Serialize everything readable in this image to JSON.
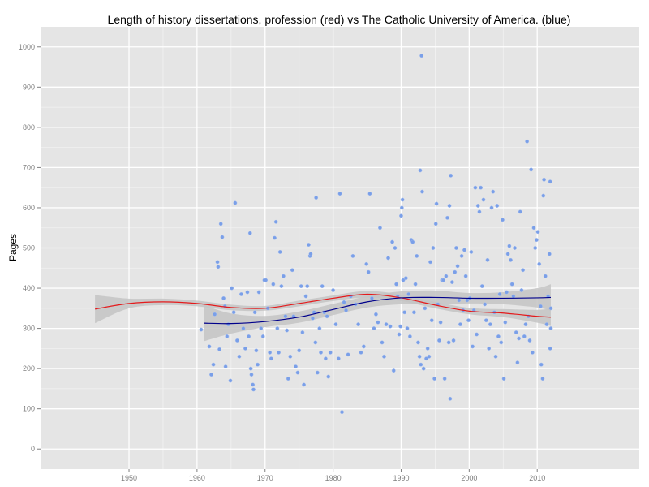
{
  "chart_data": {
    "type": "scatter",
    "title": "Length of history dissertations, profession (red) vs The Catholic University of America. (blue)",
    "xlabel": "",
    "ylabel": "Pages",
    "xlim": [
      1937,
      2025
    ],
    "ylim": [
      -50,
      1050
    ],
    "x_ticks": [
      1950,
      1960,
      1970,
      1980,
      1990,
      2000,
      2010
    ],
    "y_ticks": [
      0,
      100,
      200,
      300,
      400,
      500,
      600,
      700,
      800,
      900,
      1000
    ],
    "grid": true,
    "legend": "none",
    "colors": {
      "panel_background": "#e5e5e5",
      "grid_major": "#ffffff",
      "grid_minor": "#f2f2f2",
      "points": "#7a9fe8",
      "profession_line": "#e41a1c",
      "catholic_line": "#00008b",
      "confidence_band": "#c4c4c4"
    },
    "series": [
      {
        "kind": "points",
        "points": [
          [
            1960.6,
            297
          ],
          [
            1961.8,
            255
          ],
          [
            1962.1,
            185
          ],
          [
            1962.4,
            210
          ],
          [
            1962.6,
            335
          ],
          [
            1963.0,
            465
          ],
          [
            1963.1,
            453
          ],
          [
            1963.3,
            248
          ],
          [
            1963.5,
            560
          ],
          [
            1963.7,
            527
          ],
          [
            1963.9,
            375
          ],
          [
            1964.1,
            355
          ],
          [
            1964.2,
            205
          ],
          [
            1964.4,
            280
          ],
          [
            1964.6,
            310
          ],
          [
            1964.9,
            170
          ],
          [
            1965.1,
            400
          ],
          [
            1965.4,
            340
          ],
          [
            1965.6,
            612
          ],
          [
            1965.9,
            270
          ],
          [
            1966.2,
            230
          ],
          [
            1966.5,
            385
          ],
          [
            1966.8,
            300
          ],
          [
            1967.1,
            250
          ],
          [
            1967.4,
            390
          ],
          [
            1967.6,
            280
          ],
          [
            1967.8,
            537
          ],
          [
            1967.9,
            200
          ],
          [
            1968.0,
            185
          ],
          [
            1968.2,
            160
          ],
          [
            1968.3,
            148
          ],
          [
            1968.5,
            340
          ],
          [
            1968.7,
            245
          ],
          [
            1968.9,
            210
          ],
          [
            1969.1,
            390
          ],
          [
            1969.4,
            300
          ],
          [
            1969.7,
            280
          ],
          [
            1969.9,
            420
          ],
          [
            1970.1,
            420
          ],
          [
            1970.4,
            350
          ],
          [
            1970.7,
            240
          ],
          [
            1970.9,
            225
          ],
          [
            1971.2,
            410
          ],
          [
            1971.4,
            525
          ],
          [
            1971.6,
            565
          ],
          [
            1971.8,
            300
          ],
          [
            1972.0,
            240
          ],
          [
            1972.2,
            490
          ],
          [
            1972.4,
            405
          ],
          [
            1972.7,
            430
          ],
          [
            1973.0,
            330
          ],
          [
            1973.2,
            295
          ],
          [
            1973.4,
            175
          ],
          [
            1973.7,
            230
          ],
          [
            1974.0,
            445
          ],
          [
            1974.2,
            330
          ],
          [
            1974.5,
            205
          ],
          [
            1974.8,
            190
          ],
          [
            1975.0,
            245
          ],
          [
            1975.3,
            405
          ],
          [
            1975.5,
            290
          ],
          [
            1975.7,
            160
          ],
          [
            1976.0,
            380
          ],
          [
            1976.2,
            405
          ],
          [
            1976.4,
            508
          ],
          [
            1976.6,
            480
          ],
          [
            1976.7,
            485
          ],
          [
            1977.0,
            325
          ],
          [
            1977.2,
            340
          ],
          [
            1977.4,
            265
          ],
          [
            1977.5,
            625
          ],
          [
            1977.7,
            190
          ],
          [
            1978.0,
            300
          ],
          [
            1978.2,
            240
          ],
          [
            1978.4,
            405
          ],
          [
            1978.7,
            340
          ],
          [
            1978.9,
            225
          ],
          [
            1979.1,
            330
          ],
          [
            1979.3,
            180
          ],
          [
            1979.6,
            240
          ],
          [
            1980.0,
            395
          ],
          [
            1980.4,
            310
          ],
          [
            1980.8,
            225
          ],
          [
            1981.0,
            635
          ],
          [
            1981.3,
            92
          ],
          [
            1981.6,
            365
          ],
          [
            1981.9,
            345
          ],
          [
            1982.2,
            235
          ],
          [
            1982.6,
            380
          ],
          [
            1982.9,
            480
          ],
          [
            1983.3,
            360
          ],
          [
            1983.7,
            310
          ],
          [
            1984.1,
            240
          ],
          [
            1984.5,
            255
          ],
          [
            1984.9,
            460
          ],
          [
            1985.2,
            440
          ],
          [
            1985.4,
            635
          ],
          [
            1985.7,
            375
          ],
          [
            1986.0,
            300
          ],
          [
            1986.3,
            335
          ],
          [
            1986.6,
            315
          ],
          [
            1986.9,
            550
          ],
          [
            1987.2,
            265
          ],
          [
            1987.5,
            230
          ],
          [
            1987.8,
            310
          ],
          [
            1988.1,
            475
          ],
          [
            1988.4,
            305
          ],
          [
            1988.7,
            515
          ],
          [
            1988.9,
            195
          ],
          [
            1989.1,
            500
          ],
          [
            1989.3,
            410
          ],
          [
            1989.5,
            380
          ],
          [
            1989.7,
            285
          ],
          [
            1989.9,
            305
          ],
          [
            1990.0,
            580
          ],
          [
            1990.1,
            600
          ],
          [
            1990.2,
            620
          ],
          [
            1990.3,
            420
          ],
          [
            1990.5,
            340
          ],
          [
            1990.7,
            425
          ],
          [
            1990.9,
            300
          ],
          [
            1991.1,
            385
          ],
          [
            1991.3,
            280
          ],
          [
            1991.5,
            520
          ],
          [
            1991.7,
            515
          ],
          [
            1991.9,
            340
          ],
          [
            1992.1,
            410
          ],
          [
            1992.3,
            480
          ],
          [
            1992.5,
            265
          ],
          [
            1992.7,
            230
          ],
          [
            1992.8,
            693
          ],
          [
            1992.9,
            210
          ],
          [
            1993.0,
            978
          ],
          [
            1993.1,
            640
          ],
          [
            1993.3,
            200
          ],
          [
            1993.5,
            350
          ],
          [
            1993.7,
            225
          ],
          [
            1993.9,
            250
          ],
          [
            1994.1,
            230
          ],
          [
            1994.3,
            465
          ],
          [
            1994.5,
            320
          ],
          [
            1994.7,
            500
          ],
          [
            1994.9,
            175
          ],
          [
            1995.1,
            560
          ],
          [
            1995.2,
            610
          ],
          [
            1995.4,
            360
          ],
          [
            1995.6,
            270
          ],
          [
            1995.8,
            315
          ],
          [
            1996.0,
            420
          ],
          [
            1996.2,
            420
          ],
          [
            1996.4,
            175
          ],
          [
            1996.6,
            430
          ],
          [
            1996.8,
            575
          ],
          [
            1997.0,
            265
          ],
          [
            1997.1,
            605
          ],
          [
            1997.2,
            125
          ],
          [
            1997.3,
            680
          ],
          [
            1997.5,
            415
          ],
          [
            1997.7,
            270
          ],
          [
            1997.9,
            440
          ],
          [
            1998.1,
            500
          ],
          [
            1998.3,
            455
          ],
          [
            1998.5,
            370
          ],
          [
            1998.7,
            310
          ],
          [
            1998.9,
            480
          ],
          [
            1999.1,
            345
          ],
          [
            1999.3,
            495
          ],
          [
            1999.5,
            430
          ],
          [
            1999.7,
            370
          ],
          [
            1999.9,
            320
          ],
          [
            2000.1,
            375
          ],
          [
            2000.3,
            490
          ],
          [
            2000.5,
            255
          ],
          [
            2000.7,
            345
          ],
          [
            2000.9,
            650
          ],
          [
            2001.1,
            285
          ],
          [
            2001.3,
            605
          ],
          [
            2001.5,
            590
          ],
          [
            2001.7,
            650
          ],
          [
            2001.9,
            405
          ],
          [
            2002.1,
            620
          ],
          [
            2002.3,
            360
          ],
          [
            2002.5,
            320
          ],
          [
            2002.7,
            470
          ],
          [
            2002.9,
            250
          ],
          [
            2003.1,
            310
          ],
          [
            2003.3,
            600
          ],
          [
            2003.5,
            640
          ],
          [
            2003.7,
            340
          ],
          [
            2003.9,
            230
          ],
          [
            2004.1,
            605
          ],
          [
            2004.3,
            280
          ],
          [
            2004.5,
            385
          ],
          [
            2004.7,
            265
          ],
          [
            2004.9,
            570
          ],
          [
            2005.1,
            175
          ],
          [
            2005.3,
            315
          ],
          [
            2005.5,
            390
          ],
          [
            2005.7,
            485
          ],
          [
            2005.9,
            505
          ],
          [
            2006.1,
            470
          ],
          [
            2006.3,
            410
          ],
          [
            2006.5,
            380
          ],
          [
            2006.7,
            500
          ],
          [
            2006.9,
            290
          ],
          [
            2007.1,
            215
          ],
          [
            2007.3,
            275
          ],
          [
            2007.5,
            590
          ],
          [
            2007.7,
            395
          ],
          [
            2007.9,
            445
          ],
          [
            2008.1,
            280
          ],
          [
            2008.3,
            310
          ],
          [
            2008.5,
            765
          ],
          [
            2008.7,
            330
          ],
          [
            2008.9,
            270
          ],
          [
            2009.1,
            695
          ],
          [
            2009.3,
            240
          ],
          [
            2009.5,
            550
          ],
          [
            2009.7,
            500
          ],
          [
            2009.9,
            520
          ],
          [
            2010.1,
            540
          ],
          [
            2010.3,
            460
          ],
          [
            2010.5,
            355
          ],
          [
            2010.6,
            210
          ],
          [
            2010.8,
            175
          ],
          [
            2010.9,
            630
          ],
          [
            2011.0,
            670
          ],
          [
            2011.2,
            430
          ],
          [
            2011.4,
            310
          ],
          [
            2011.6,
            380
          ],
          [
            2011.8,
            485
          ],
          [
            2011.9,
            665
          ],
          [
            2011.9,
            250
          ],
          [
            2012.0,
            300
          ],
          [
            2012.0,
            350
          ]
        ]
      },
      {
        "kind": "smooth",
        "color": "red",
        "x": [
          1945,
          1950,
          1955,
          1960,
          1965,
          1970,
          1975,
          1980,
          1985,
          1990,
          1995,
          2000,
          2005,
          2010,
          2012
        ],
        "y": [
          348,
          362,
          366,
          362,
          352,
          350,
          362,
          375,
          385,
          376,
          358,
          343,
          338,
          330,
          328
        ],
        "band_lower": [
          313,
          350,
          358,
          355,
          345,
          344,
          355,
          368,
          377,
          368,
          350,
          335,
          328,
          314,
          306
        ],
        "band_upper": [
          383,
          374,
          374,
          369,
          359,
          356,
          369,
          382,
          393,
          384,
          366,
          351,
          348,
          346,
          350
        ]
      },
      {
        "kind": "smooth",
        "color": "blue",
        "x": [
          1961,
          1965,
          1970,
          1975,
          1980,
          1985,
          1990,
          1995,
          2000,
          2005,
          2010,
          2012
        ],
        "y": [
          313,
          312,
          317,
          328,
          347,
          366,
          376,
          377,
          375,
          375,
          376,
          377
        ],
        "band_lower": [
          268,
          287,
          303,
          314,
          333,
          352,
          360,
          360,
          362,
          360,
          352,
          344
        ],
        "band_upper": [
          358,
          337,
          331,
          342,
          361,
          380,
          392,
          394,
          388,
          390,
          400,
          410
        ]
      }
    ]
  }
}
